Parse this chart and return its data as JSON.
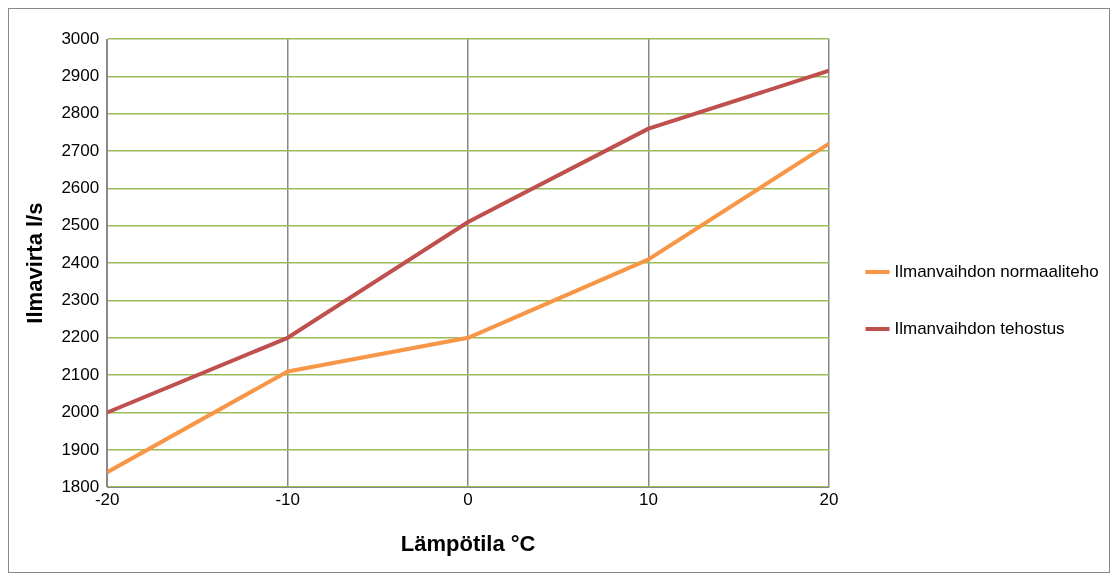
{
  "chart_data": {
    "type": "line",
    "xlabel": "Lämpötila °C",
    "ylabel": "Ilmavirta l/s",
    "x": [
      -20,
      -10,
      0,
      10,
      20
    ],
    "series": [
      {
        "name": "Ilmanvaihdon normaaliteho",
        "color": "#f79646",
        "values": [
          1840,
          2110,
          2200,
          2410,
          2720
        ]
      },
      {
        "name": "Ilmanvaihdon tehostus",
        "color": "#c0504d",
        "values": [
          2000,
          2200,
          2510,
          2760,
          2915
        ]
      }
    ],
    "xlim": [
      -20,
      20
    ],
    "xticks": [
      -20,
      -10,
      0,
      10,
      20
    ],
    "ylim": [
      1800,
      3000
    ],
    "yticks": [
      1800,
      1900,
      2000,
      2100,
      2200,
      2300,
      2400,
      2500,
      2600,
      2700,
      2800,
      2900,
      3000
    ],
    "grid": true,
    "legend": "right",
    "marker": "none",
    "line_style": "solid"
  }
}
